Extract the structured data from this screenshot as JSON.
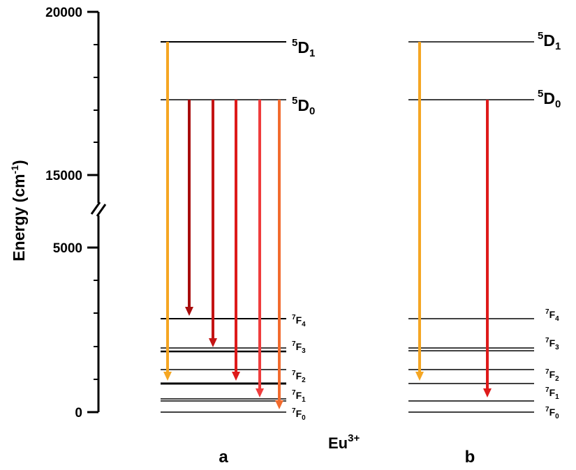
{
  "axis": {
    "title": "Energy (cm",
    "title_sup": "-1",
    "title_end": ")",
    "ticks": [
      "20000",
      "15000",
      "5000",
      "0"
    ],
    "break_mark": "//"
  },
  "ion": {
    "base": "Eu",
    "sup": "3+"
  },
  "panels": [
    {
      "label": "a"
    },
    {
      "label": "b"
    }
  ],
  "levels": [
    {
      "id": "5D1",
      "sup": "5",
      "base": "D",
      "sub": "1",
      "size": "large"
    },
    {
      "id": "5D0",
      "sup": "5",
      "base": "D",
      "sub": "0",
      "size": "large"
    },
    {
      "id": "7F4",
      "sup": "7",
      "base": "F",
      "sub": "4",
      "size": "small"
    },
    {
      "id": "7F3",
      "sup": "7",
      "base": "F",
      "sub": "3",
      "size": "small"
    },
    {
      "id": "7F2",
      "sup": "7",
      "base": "F",
      "sub": "2",
      "size": "small"
    },
    {
      "id": "7F1",
      "sup": "7",
      "base": "F",
      "sub": "1",
      "size": "small"
    },
    {
      "id": "7F0",
      "sup": "7",
      "base": "F",
      "sub": "0",
      "size": "small"
    }
  ],
  "transitions": {
    "a": [
      {
        "from": "5D1",
        "to": "7F2",
        "color": "#f5a623"
      },
      {
        "from": "5D0",
        "to": "7F4",
        "color": "#a80d0d"
      },
      {
        "from": "5D0",
        "to": "7F3",
        "color": "#c41414"
      },
      {
        "from": "5D0",
        "to": "7F2",
        "color": "#de1a1a"
      },
      {
        "from": "5D0",
        "to": "7F1",
        "color": "#ef3d3d"
      },
      {
        "from": "5D0",
        "to": "7F0",
        "color": "#f26b2e"
      }
    ],
    "b": [
      {
        "from": "5D1",
        "to": "7F2",
        "color": "#f5a623"
      },
      {
        "from": "5D0",
        "to": "7F1",
        "color": "#de1a1a"
      }
    ]
  }
}
